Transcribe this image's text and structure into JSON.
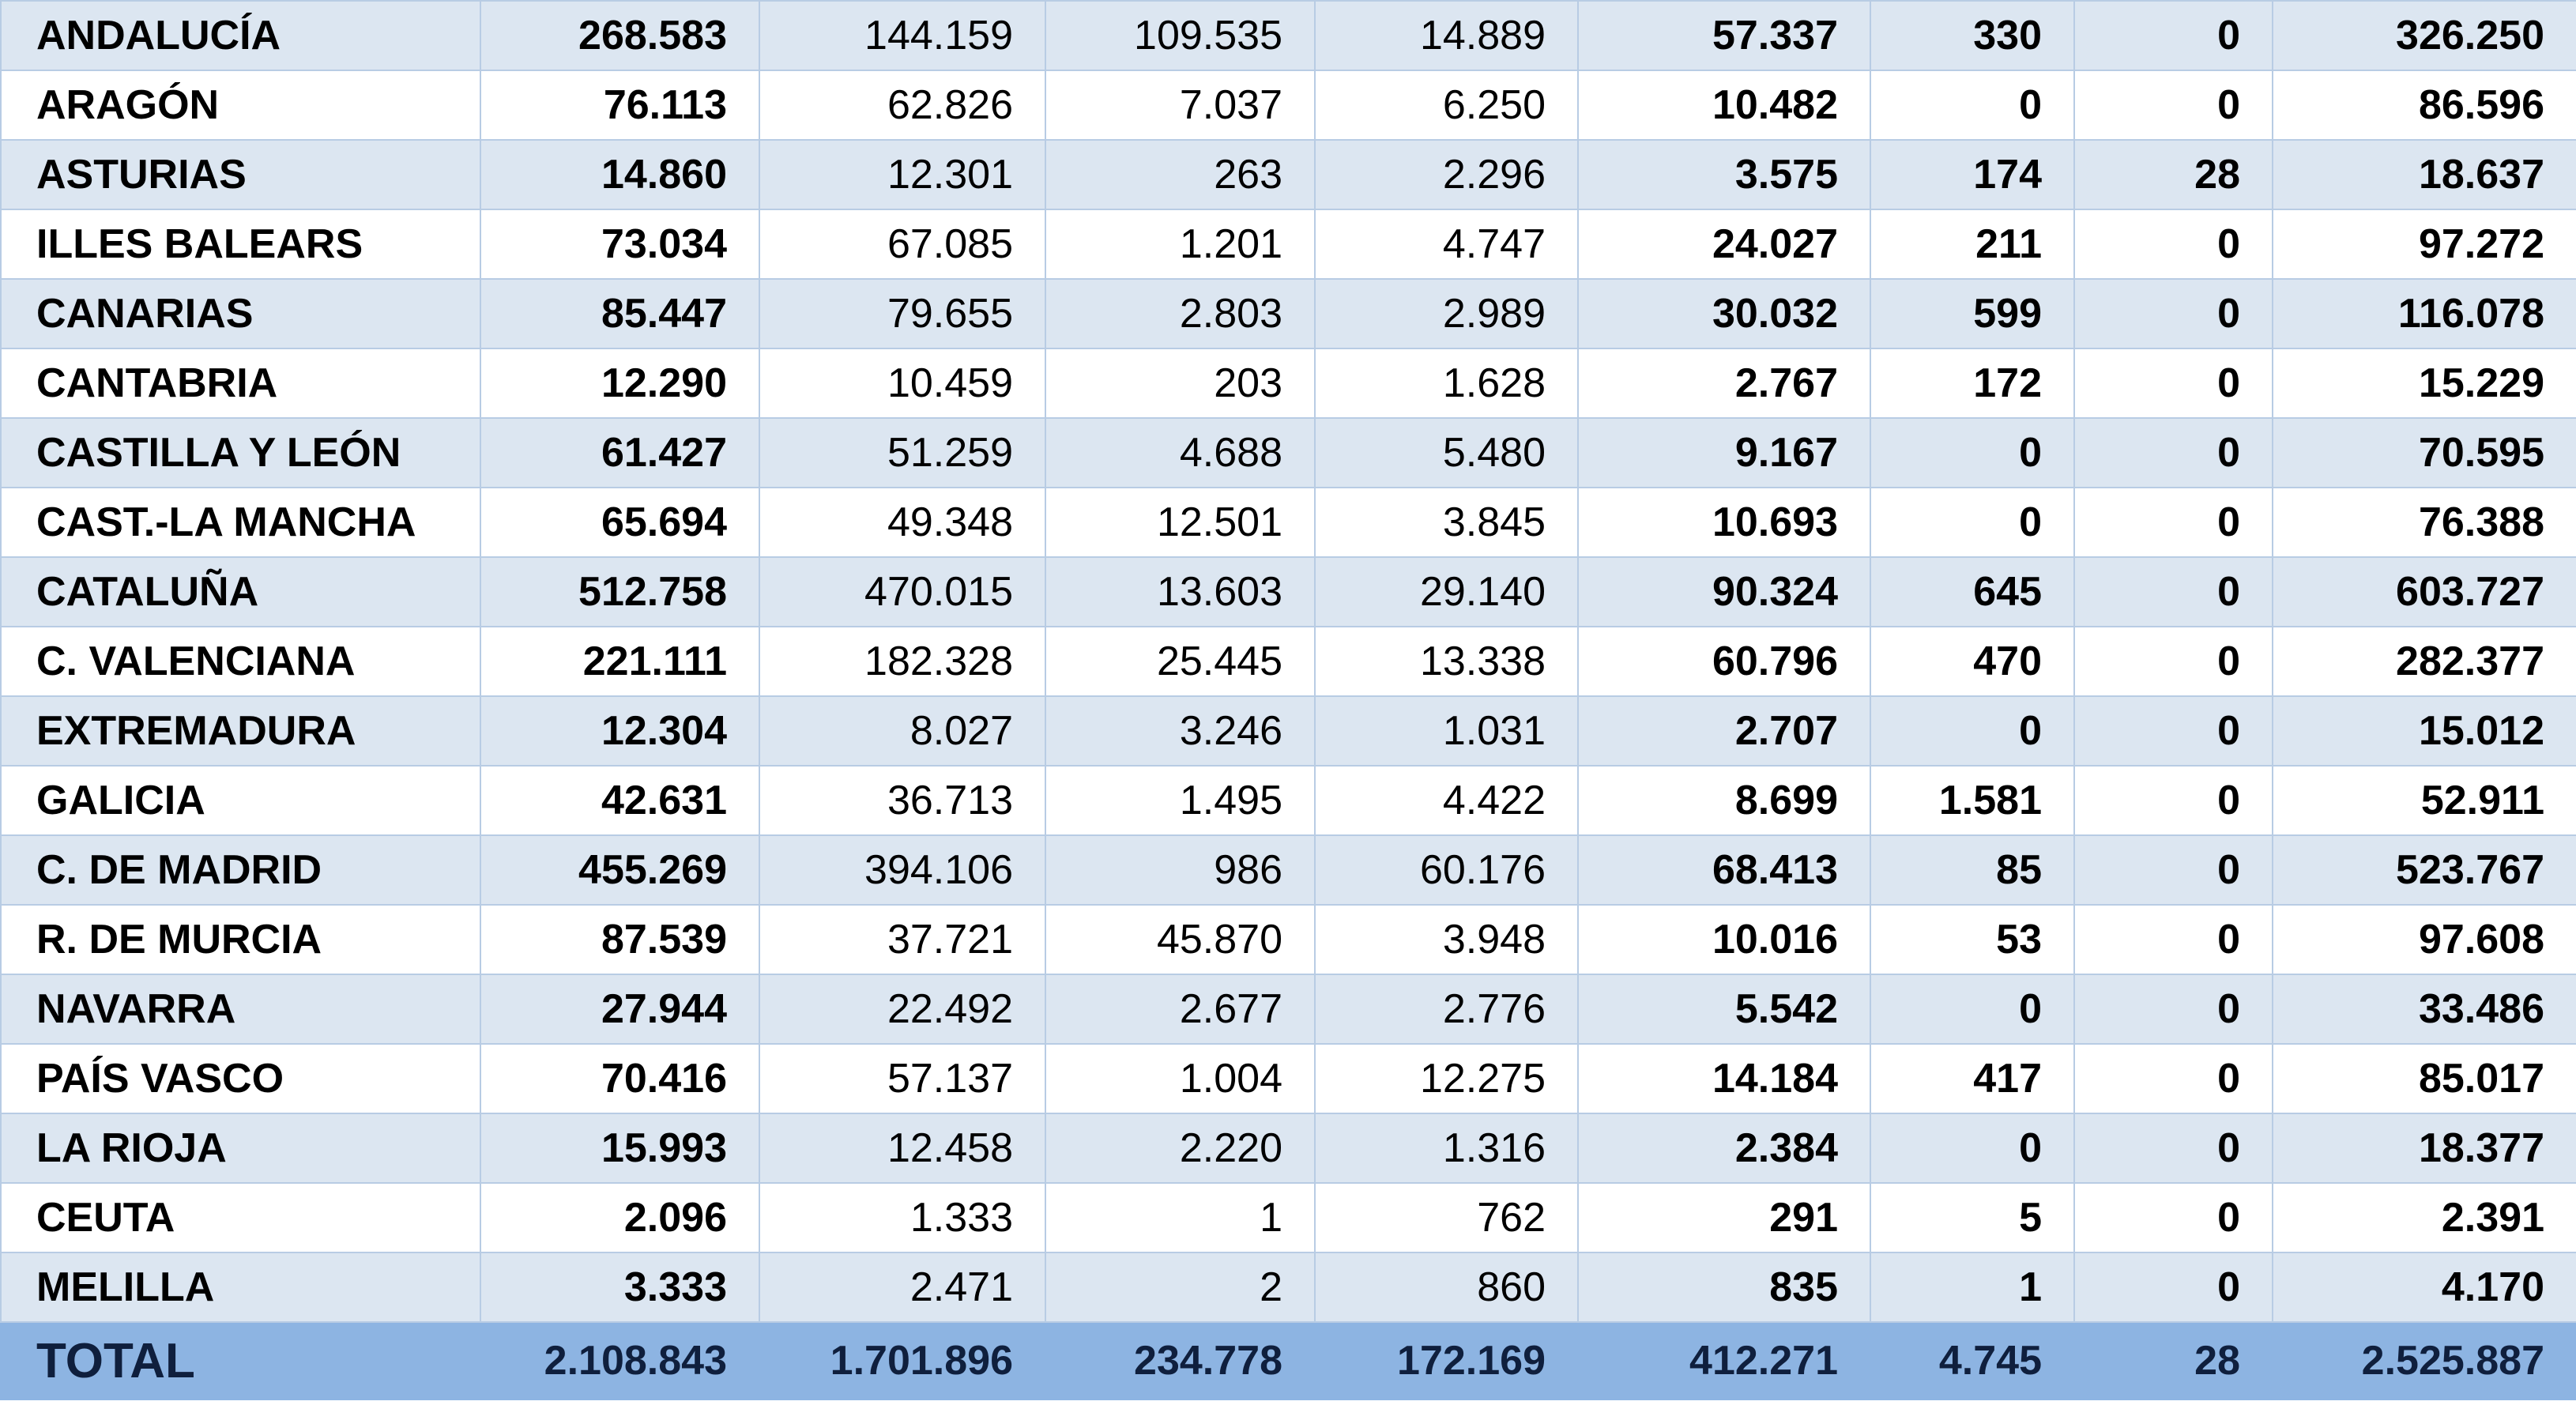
{
  "table": {
    "rows": [
      [
        "ANDALUCÍA",
        "268.583",
        "144.159",
        "109.535",
        "14.889",
        "57.337",
        "330",
        "0",
        "326.250"
      ],
      [
        "ARAGÓN",
        "76.113",
        "62.826",
        "7.037",
        "6.250",
        "10.482",
        "0",
        "0",
        "86.596"
      ],
      [
        "ASTURIAS",
        "14.860",
        "12.301",
        "263",
        "2.296",
        "3.575",
        "174",
        "28",
        "18.637"
      ],
      [
        "ILLES BALEARS",
        "73.034",
        "67.085",
        "1.201",
        "4.747",
        "24.027",
        "211",
        "0",
        "97.272"
      ],
      [
        "CANARIAS",
        "85.447",
        "79.655",
        "2.803",
        "2.989",
        "30.032",
        "599",
        "0",
        "116.078"
      ],
      [
        "CANTABRIA",
        "12.290",
        "10.459",
        "203",
        "1.628",
        "2.767",
        "172",
        "0",
        "15.229"
      ],
      [
        "CASTILLA Y LEÓN",
        "61.427",
        "51.259",
        "4.688",
        "5.480",
        "9.167",
        "0",
        "0",
        "70.595"
      ],
      [
        "CAST.-LA MANCHA",
        "65.694",
        "49.348",
        "12.501",
        "3.845",
        "10.693",
        "0",
        "0",
        "76.388"
      ],
      [
        "CATALUÑA",
        "512.758",
        "470.015",
        "13.603",
        "29.140",
        "90.324",
        "645",
        "0",
        "603.727"
      ],
      [
        "C. VALENCIANA",
        "221.111",
        "182.328",
        "25.445",
        "13.338",
        "60.796",
        "470",
        "0",
        "282.377"
      ],
      [
        "EXTREMADURA",
        "12.304",
        "8.027",
        "3.246",
        "1.031",
        "2.707",
        "0",
        "0",
        "15.012"
      ],
      [
        "GALICIA",
        "42.631",
        "36.713",
        "1.495",
        "4.422",
        "8.699",
        "1.581",
        "0",
        "52.911"
      ],
      [
        "C. DE MADRID",
        "455.269",
        "394.106",
        "986",
        "60.176",
        "68.413",
        "85",
        "0",
        "523.767"
      ],
      [
        "R. DE MURCIA",
        "87.539",
        "37.721",
        "45.870",
        "3.948",
        "10.016",
        "53",
        "0",
        "97.608"
      ],
      [
        "NAVARRA",
        "27.944",
        "22.492",
        "2.677",
        "2.776",
        "5.542",
        "0",
        "0",
        "33.486"
      ],
      [
        "PAÍS VASCO",
        "70.416",
        "57.137",
        "1.004",
        "12.275",
        "14.184",
        "417",
        "0",
        "85.017"
      ],
      [
        "LA RIOJA",
        "15.993",
        "12.458",
        "2.220",
        "1.316",
        "2.384",
        "0",
        "0",
        "18.377"
      ],
      [
        "CEUTA",
        "2.096",
        "1.333",
        "1",
        "762",
        "291",
        "5",
        "0",
        "2.391"
      ],
      [
        "MELILLA",
        "3.333",
        "2.471",
        "2",
        "860",
        "835",
        "1",
        "0",
        "4.170"
      ]
    ],
    "total": [
      "TOTAL",
      "2.108.843",
      "1.701.896",
      "234.778",
      "172.169",
      "412.271",
      "4.745",
      "28",
      "2.525.887"
    ]
  }
}
